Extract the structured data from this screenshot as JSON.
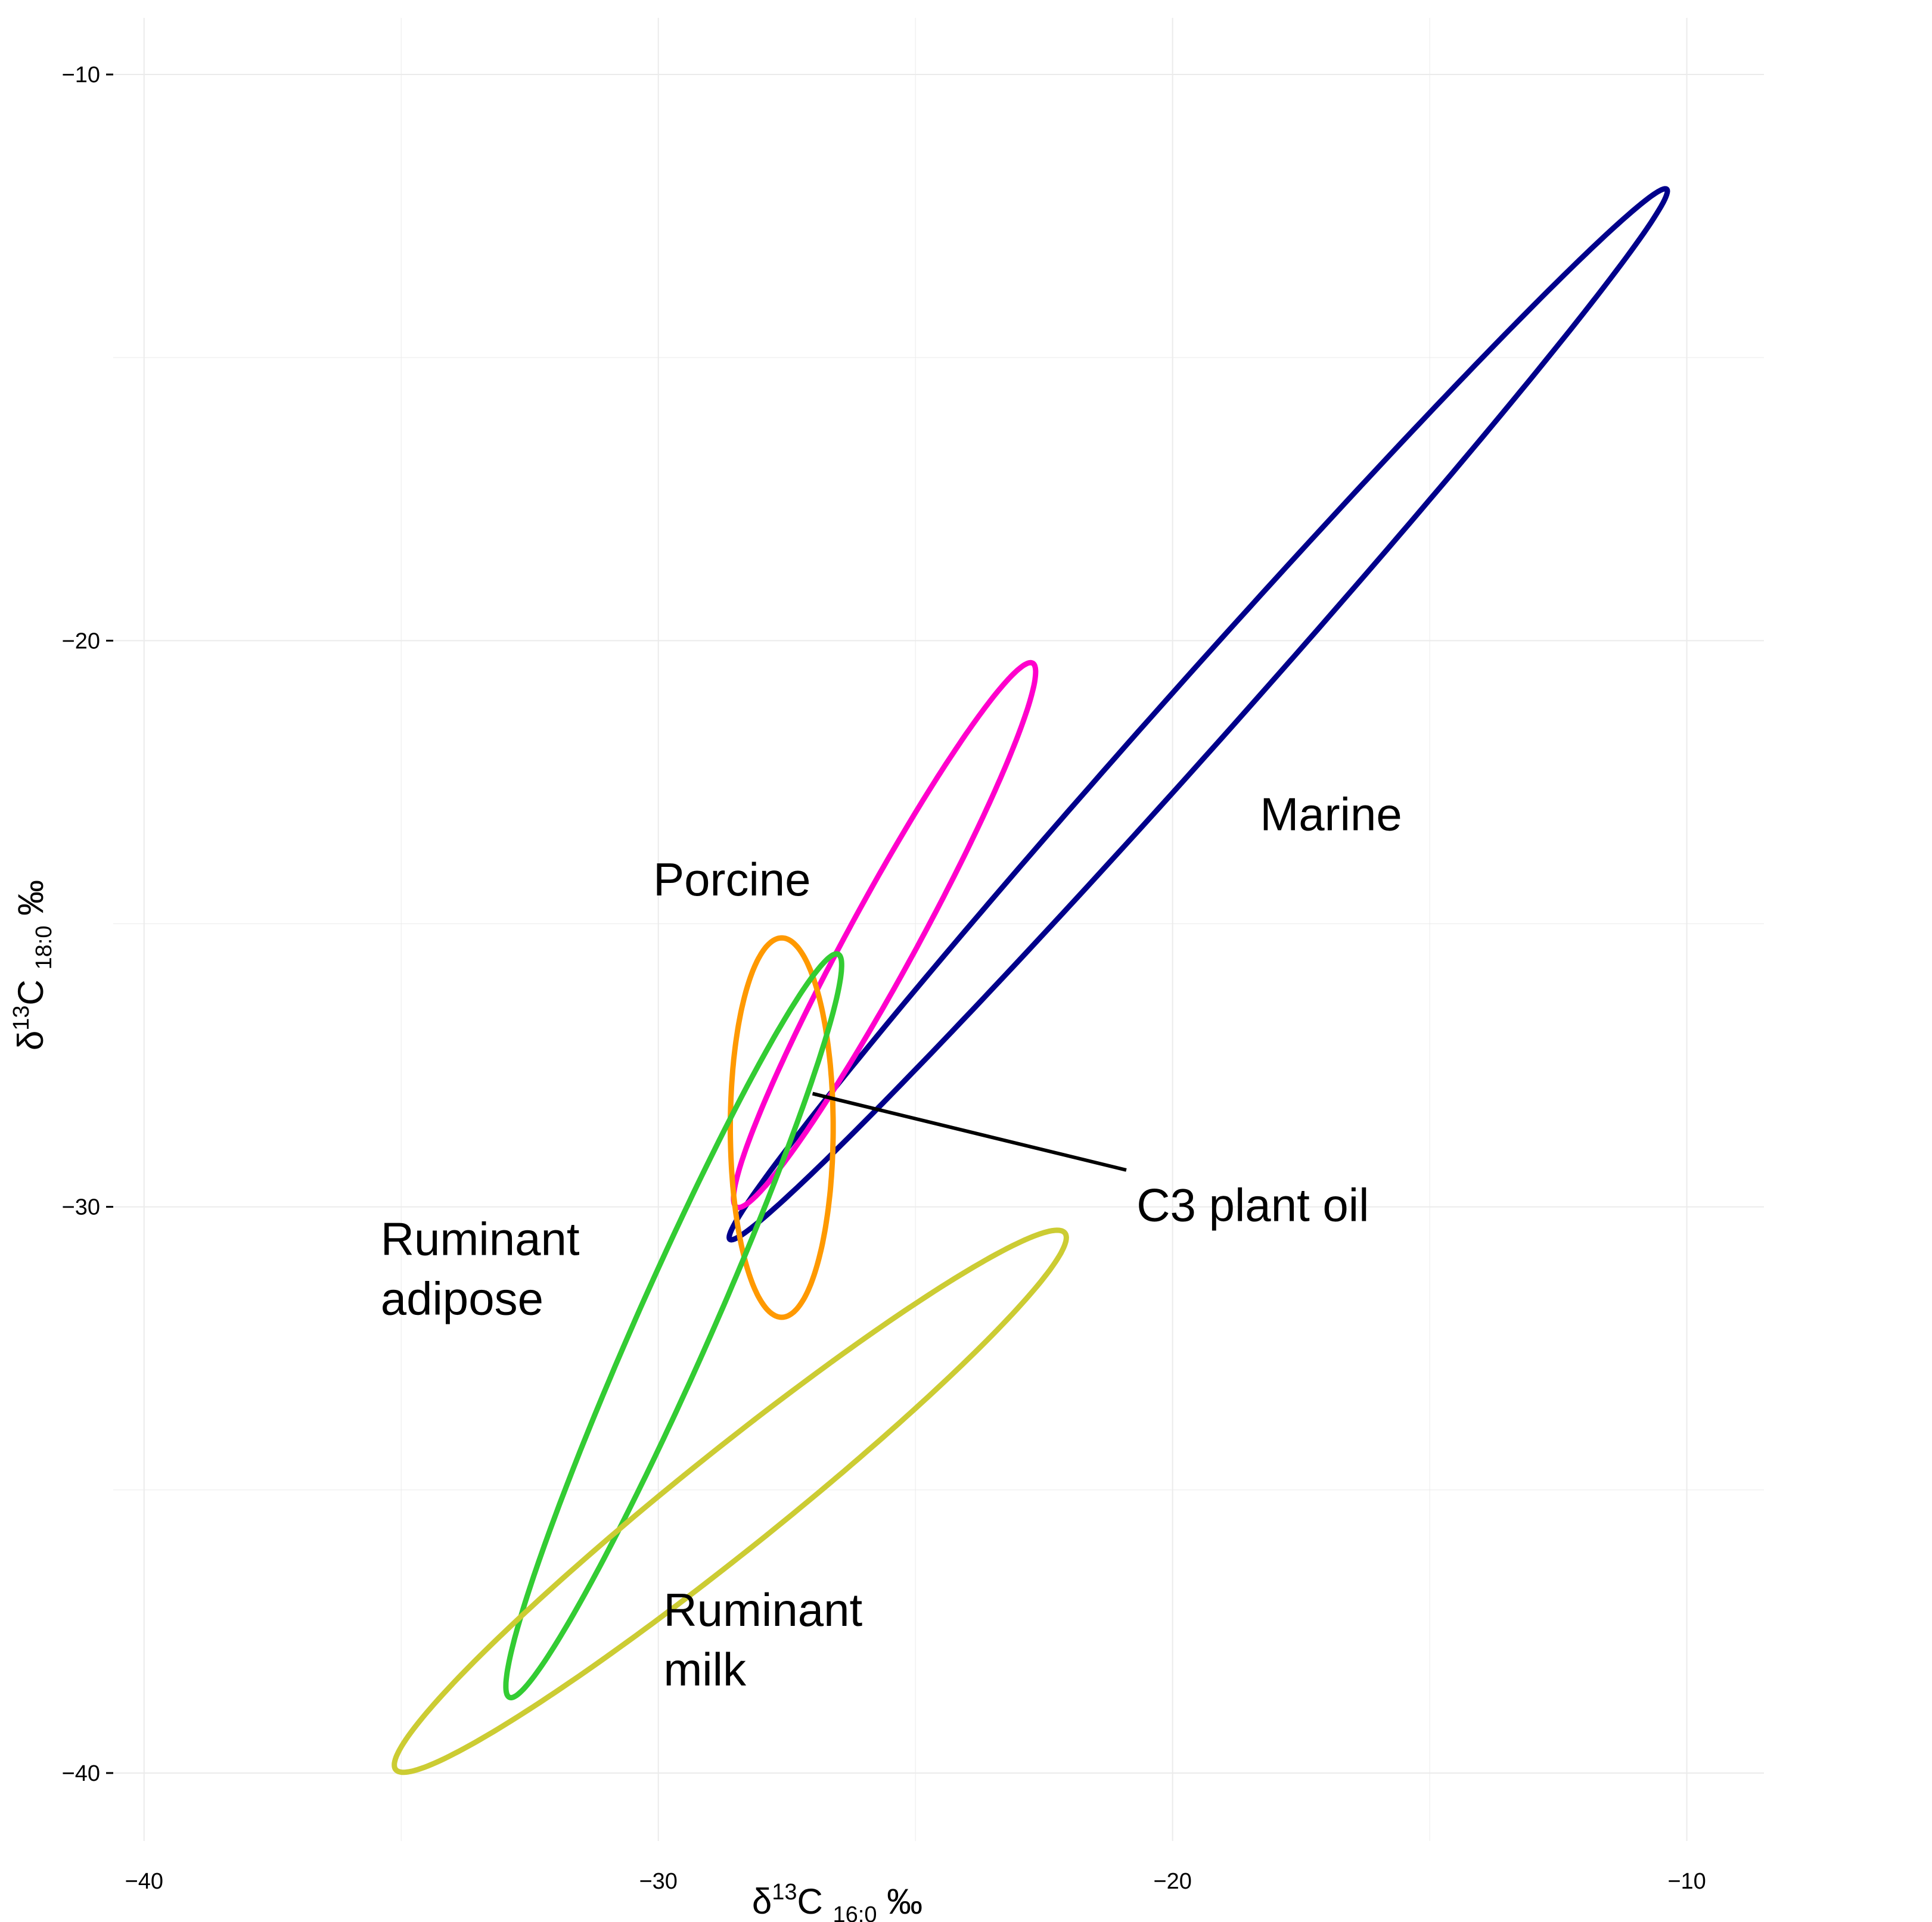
{
  "colors": {
    "grid": "#ebebeb",
    "axis": "#000000",
    "Marine": "#00008b",
    "Porcine": "#ff00cc",
    "C3 plant oil": "#ff9900",
    "Ruminant adipose": "#33cc33",
    "Ruminant milk": "#cccc33"
  },
  "chart_data": {
    "type": "ellipse-range plot",
    "xlabel": {
      "prefix": "δ",
      "sup": "13",
      "main": "C ",
      "sub": "16:0",
      "suffix": " ‰"
    },
    "ylabel": {
      "prefix": "δ",
      "sup": "13",
      "main": "C ",
      "sub": "18:0",
      "suffix": " ‰"
    },
    "xlim": [
      -40.6,
      -8.5
    ],
    "ylim": [
      -41.2,
      -9.0
    ],
    "x_ticks": [
      -40,
      -30,
      -20,
      -10
    ],
    "x_tick_labels": [
      "−40",
      "−30",
      "−20",
      "−10"
    ],
    "y_ticks": [
      -10,
      -20,
      -30,
      -40
    ],
    "y_tick_labels": [
      "−10",
      "−20",
      "−30",
      "−40"
    ],
    "grid": true,
    "legend": "none",
    "series": [
      {
        "name": "Marine",
        "center": [
          -19.5,
          -21.3
        ],
        "semi_major": 13.0,
        "semi_minor": 0.62,
        "angle_deg": 45.5
      },
      {
        "name": "Porcine",
        "center": [
          -25.6,
          -25.2
        ],
        "semi_major": 5.6,
        "semi_minor": 0.65,
        "angle_deg": 59
      },
      {
        "name": "C3 plant oil",
        "center": [
          -27.6,
          -28.6
        ],
        "semi_major": 3.35,
        "semi_minor": 1.0,
        "angle_deg": 90
      },
      {
        "name": "Ruminant adipose",
        "center": [
          -29.7,
          -32.1
        ],
        "semi_major": 7.3,
        "semi_minor": 0.72,
        "angle_deg": 64
      },
      {
        "name": "Ruminant milk",
        "center": [
          -28.6,
          -35.2
        ],
        "semi_major": 8.05,
        "semi_minor": 0.9,
        "angle_deg": 36
      }
    ],
    "annotations": [
      {
        "lines": [
          "Marine"
        ],
        "x": -18.3,
        "y": -23.35
      },
      {
        "lines": [
          "Porcine"
        ],
        "x": -30.1,
        "y": -24.5
      },
      {
        "lines": [
          "C3 plant oil"
        ],
        "x": -20.7,
        "y": -30.25,
        "arrow_from": [
          -20.9,
          -29.35
        ],
        "arrow_to": [
          -27.0,
          -28.0
        ]
      },
      {
        "lines": [
          "Ruminant",
          "adipose"
        ],
        "x": -35.4,
        "y": -30.85
      },
      {
        "lines": [
          "Ruminant",
          "milk"
        ],
        "x": -29.9,
        "y": -37.4
      }
    ]
  }
}
